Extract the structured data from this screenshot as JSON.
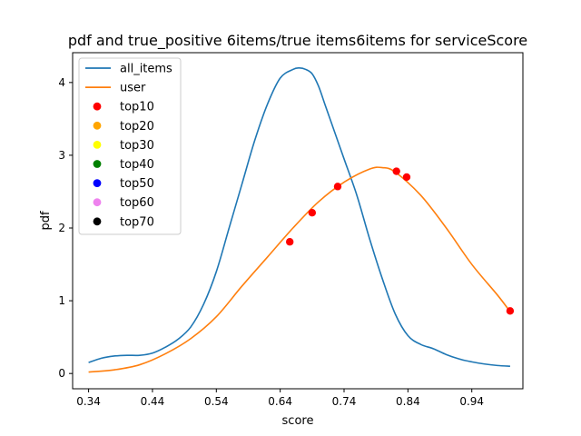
{
  "chart_data": {
    "type": "line",
    "title": "pdf and true_positive 6items/true items6items for serviceScore",
    "xlabel": "score",
    "ylabel": "pdf",
    "xlim": [
      0.315,
      1.02
    ],
    "ylim": [
      -0.21,
      4.41
    ],
    "xticks": [
      "0.34",
      "0.44",
      "0.54",
      "0.64",
      "0.74",
      "0.84",
      "0.94"
    ],
    "xtick_values": [
      0.34,
      0.44,
      0.54,
      0.64,
      0.74,
      0.84,
      0.94
    ],
    "yticks": [
      "0",
      "1",
      "2",
      "3",
      "4"
    ],
    "ytick_values": [
      0,
      1,
      2,
      3,
      4
    ],
    "grid": false,
    "legend_position": "top-left",
    "series": [
      {
        "name": "all_items",
        "type": "line",
        "color": "#1f77b4",
        "x": [
          0.34,
          0.36,
          0.38,
          0.4,
          0.42,
          0.44,
          0.46,
          0.48,
          0.5,
          0.52,
          0.54,
          0.56,
          0.58,
          0.6,
          0.62,
          0.64,
          0.66,
          0.67,
          0.68,
          0.69,
          0.7,
          0.71,
          0.72,
          0.74,
          0.76,
          0.78,
          0.8,
          0.82,
          0.84,
          0.86,
          0.88,
          0.9,
          0.92,
          0.94,
          0.96,
          0.98,
          1.0
        ],
        "y": [
          0.15,
          0.21,
          0.24,
          0.25,
          0.25,
          0.28,
          0.36,
          0.47,
          0.64,
          0.95,
          1.4,
          2.0,
          2.6,
          3.2,
          3.7,
          4.06,
          4.18,
          4.2,
          4.18,
          4.12,
          3.95,
          3.7,
          3.45,
          2.95,
          2.45,
          1.85,
          1.3,
          0.82,
          0.52,
          0.4,
          0.34,
          0.26,
          0.2,
          0.16,
          0.13,
          0.11,
          0.1
        ]
      },
      {
        "name": "user",
        "type": "line",
        "color": "#ff7f0e",
        "x": [
          0.34,
          0.38,
          0.42,
          0.46,
          0.5,
          0.54,
          0.58,
          0.62,
          0.66,
          0.7,
          0.74,
          0.78,
          0.8,
          0.82,
          0.86,
          0.9,
          0.94,
          0.98,
          1.0
        ],
        "y": [
          0.02,
          0.05,
          0.12,
          0.27,
          0.48,
          0.78,
          1.2,
          1.6,
          2.0,
          2.36,
          2.63,
          2.81,
          2.83,
          2.77,
          2.45,
          2.0,
          1.5,
          1.08,
          0.85
        ]
      },
      {
        "name": "top10",
        "type": "scatter",
        "color": "#ff0000",
        "x": [
          0.655,
          0.69,
          0.73,
          0.822,
          0.838,
          1.0
        ],
        "y": [
          1.81,
          2.21,
          2.57,
          2.78,
          2.7,
          0.86
        ]
      },
      {
        "name": "top20",
        "type": "scatter",
        "color": "#ffa500",
        "x": [],
        "y": []
      },
      {
        "name": "top30",
        "type": "scatter",
        "color": "#ffff00",
        "x": [],
        "y": []
      },
      {
        "name": "top40",
        "type": "scatter",
        "color": "#008000",
        "x": [],
        "y": []
      },
      {
        "name": "top50",
        "type": "scatter",
        "color": "#0000ff",
        "x": [],
        "y": []
      },
      {
        "name": "top60",
        "type": "scatter",
        "color": "#ee82ee",
        "x": [],
        "y": []
      },
      {
        "name": "top70",
        "type": "scatter",
        "color": "#000000",
        "x": [],
        "y": []
      }
    ],
    "legend": [
      {
        "label": "all_items",
        "kind": "line",
        "color": "#1f77b4"
      },
      {
        "label": "user",
        "kind": "line",
        "color": "#ff7f0e"
      },
      {
        "label": "top10",
        "kind": "marker",
        "color": "#ff0000"
      },
      {
        "label": "top20",
        "kind": "marker",
        "color": "#ffa500"
      },
      {
        "label": "top30",
        "kind": "marker",
        "color": "#ffff00"
      },
      {
        "label": "top40",
        "kind": "marker",
        "color": "#008000"
      },
      {
        "label": "top50",
        "kind": "marker",
        "color": "#0000ff"
      },
      {
        "label": "top60",
        "kind": "marker",
        "color": "#ee82ee"
      },
      {
        "label": "top70",
        "kind": "marker",
        "color": "#000000"
      }
    ]
  }
}
